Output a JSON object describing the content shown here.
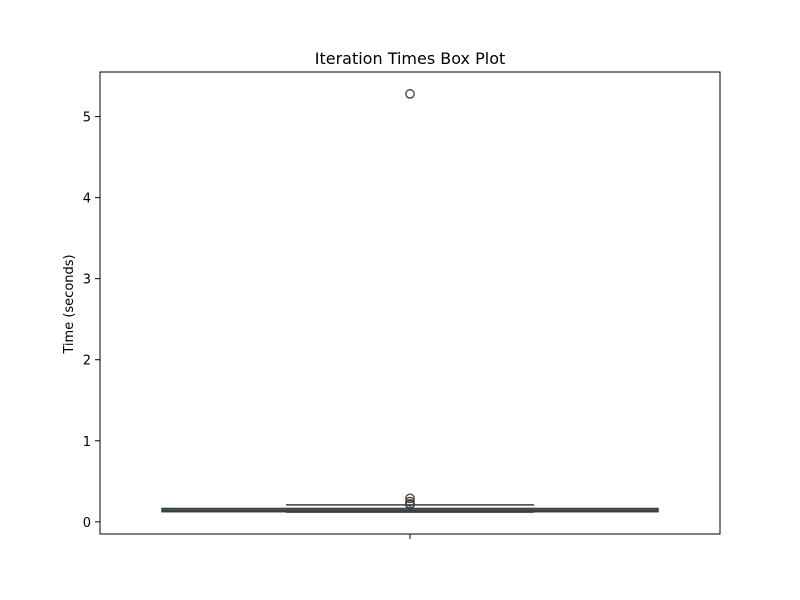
{
  "chart_data": {
    "type": "box",
    "title": "Iteration Times Box Plot",
    "xlabel": "",
    "ylabel": "Time (seconds)",
    "ylim": [
      -0.15,
      5.55
    ],
    "yticks": [
      0,
      1,
      2,
      3,
      4,
      5
    ],
    "grid": false,
    "box_color": "#3274a1",
    "line_color": "#3f3f3f",
    "box": {
      "whisker_low": 0.12,
      "q1": 0.125,
      "median": 0.14,
      "q3": 0.165,
      "whisker_high": 0.21
    },
    "outliers": [
      5.28,
      0.29,
      0.25,
      0.22,
      0.21,
      0.22
    ]
  }
}
